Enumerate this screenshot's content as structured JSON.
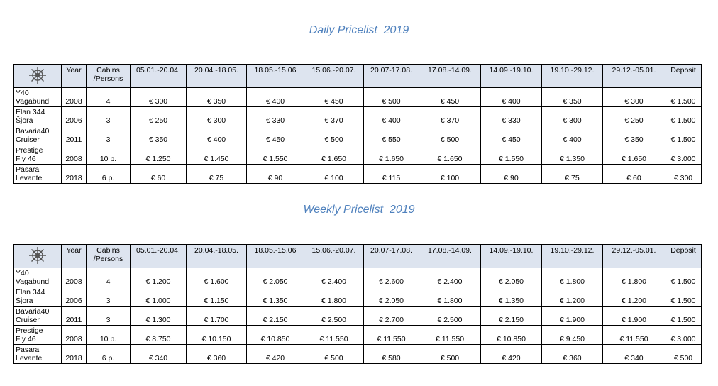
{
  "sections": [
    {
      "title": "Daily Pricelist  2019",
      "table": {
        "header": [
          "Year",
          "Cabins\n/Persons",
          "05.01.-20.04.",
          "20.04.-18.05.",
          "18.05.-15.06",
          "15.06.-20.07.",
          "20.07-17.08.",
          "17.08.-14.09.",
          "14.09.-19.10.",
          "19.10.-29.12.",
          "29.12.-05.01.",
          "Deposit"
        ],
        "rows": [
          [
            "Y40\nVagabund",
            "2008",
            "4",
            "€ 300",
            "€ 350",
            "€ 400",
            "€ 450",
            "€ 500",
            "€ 450",
            "€ 400",
            "€ 350",
            "€ 300",
            "€ 1.500"
          ],
          [
            "Elan 344\nŠjora",
            "2006",
            "3",
            "€ 250",
            "€ 300",
            "€ 330",
            "€ 370",
            "€ 400",
            "€ 370",
            "€ 330",
            "€ 300",
            "€ 250",
            "€ 1.500"
          ],
          [
            "Bavaria40\nCruiser",
            "2011",
            "3",
            "€ 350",
            "€ 400",
            "€ 450",
            "€ 500",
            "€ 550",
            "€ 500",
            "€ 450",
            "€ 400",
            "€ 350",
            "€ 1.500"
          ],
          [
            "Prestige\nFly 46",
            "2008",
            "10 p.",
            "€ 1.250",
            "€ 1.450",
            "€ 1.550",
            "€ 1.650",
            "€ 1.650",
            "€ 1.650",
            "€ 1.550",
            "€ 1.350",
            "€ 1.650",
            "€ 3.000"
          ],
          [
            "Pasara\nLevante",
            "2018",
            "6 p.",
            "€ 60",
            "€ 75",
            "€ 90",
            "€ 100",
            "€ 115",
            "€ 100",
            "€ 90",
            "€ 75",
            "€ 60",
            "€ 300"
          ]
        ]
      }
    },
    {
      "title": "Weekly Pricelist  2019",
      "table": {
        "header": [
          "Year",
          "Cabins\n/Persons",
          "05.01.-20.04.",
          "20.04.-18.05.",
          "18.05.-15.06",
          "15.06.-20.07.",
          "20.07-17.08.",
          "17.08.-14.09.",
          "14.09.-19.10.",
          "19.10.-29.12.",
          "29.12.-05.01.",
          "Deposit"
        ],
        "rows": [
          [
            "Y40\nVagabund",
            "2008",
            "4",
            "€ 1.200",
            "€ 1.600",
            "€ 2.050",
            "€ 2.400",
            "€ 2.600",
            "€ 2.400",
            "€ 2.050",
            "€ 1.800",
            "€ 1.800",
            "€ 1.500"
          ],
          [
            "Elan 344\nŠjora",
            "2006",
            "3",
            "€ 1.000",
            "€ 1.150",
            "€ 1.350",
            "€ 1.800",
            "€ 2.050",
            "€ 1.800",
            "€ 1.350",
            "€ 1.200",
            "€ 1.200",
            "€ 1.500"
          ],
          [
            "Bavaria40\nCruiser",
            "2011",
            "3",
            "€ 1.300",
            "€ 1.700",
            "€ 2.150",
            "€ 2.500",
            "€ 2.700",
            "€ 2.500",
            "€ 2.150",
            "€ 1.900",
            "€ 1.900",
            "€ 1.500"
          ],
          [
            "Prestige\nFly 46",
            "2008",
            "10 p.",
            "€ 8.750",
            "€ 10.150",
            "€ 10.850",
            "€ 11.550",
            "€ 11.550",
            "€ 11.550",
            "€ 10.850",
            "€ 9.450",
            "€ 11.550",
            "€ 3.000"
          ],
          [
            "Pasara\nLevante",
            "2018",
            "6 p.",
            "€ 340",
            "€ 360",
            "€ 420",
            "€ 500",
            "€ 580",
            "€ 500",
            "€ 420",
            "€ 360",
            "€ 340",
            "€ 500"
          ]
        ]
      }
    }
  ]
}
